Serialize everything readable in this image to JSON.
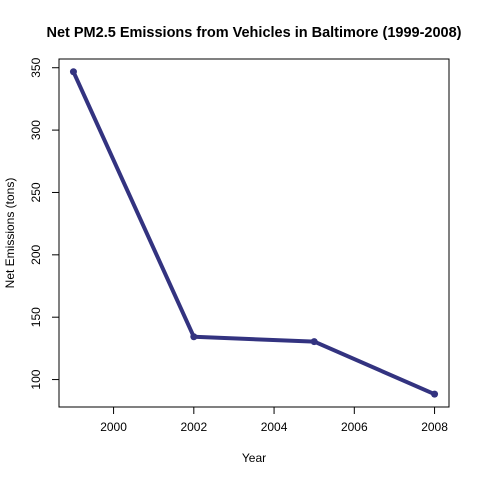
{
  "chart_data": {
    "type": "line",
    "title": "Net PM2.5 Emissions from Vehicles in Baltimore (1999-2008)",
    "xlabel": "Year",
    "ylabel": "Net Emissions (tons)",
    "x": [
      1999,
      2002,
      2005,
      2008
    ],
    "series": [
      {
        "values": [
          346.8,
          134.3,
          130.4,
          88.3
        ]
      }
    ],
    "xlim": [
      1998.64,
      2008.36
    ],
    "ylim": [
      78.0,
      357.0
    ],
    "xticks": [
      "2000",
      "2002",
      "2004",
      "2006",
      "2008"
    ],
    "yticks": [
      "100",
      "150",
      "200",
      "250",
      "300",
      "350"
    ],
    "line_color": "#333380",
    "grid": false,
    "legend": "none"
  }
}
